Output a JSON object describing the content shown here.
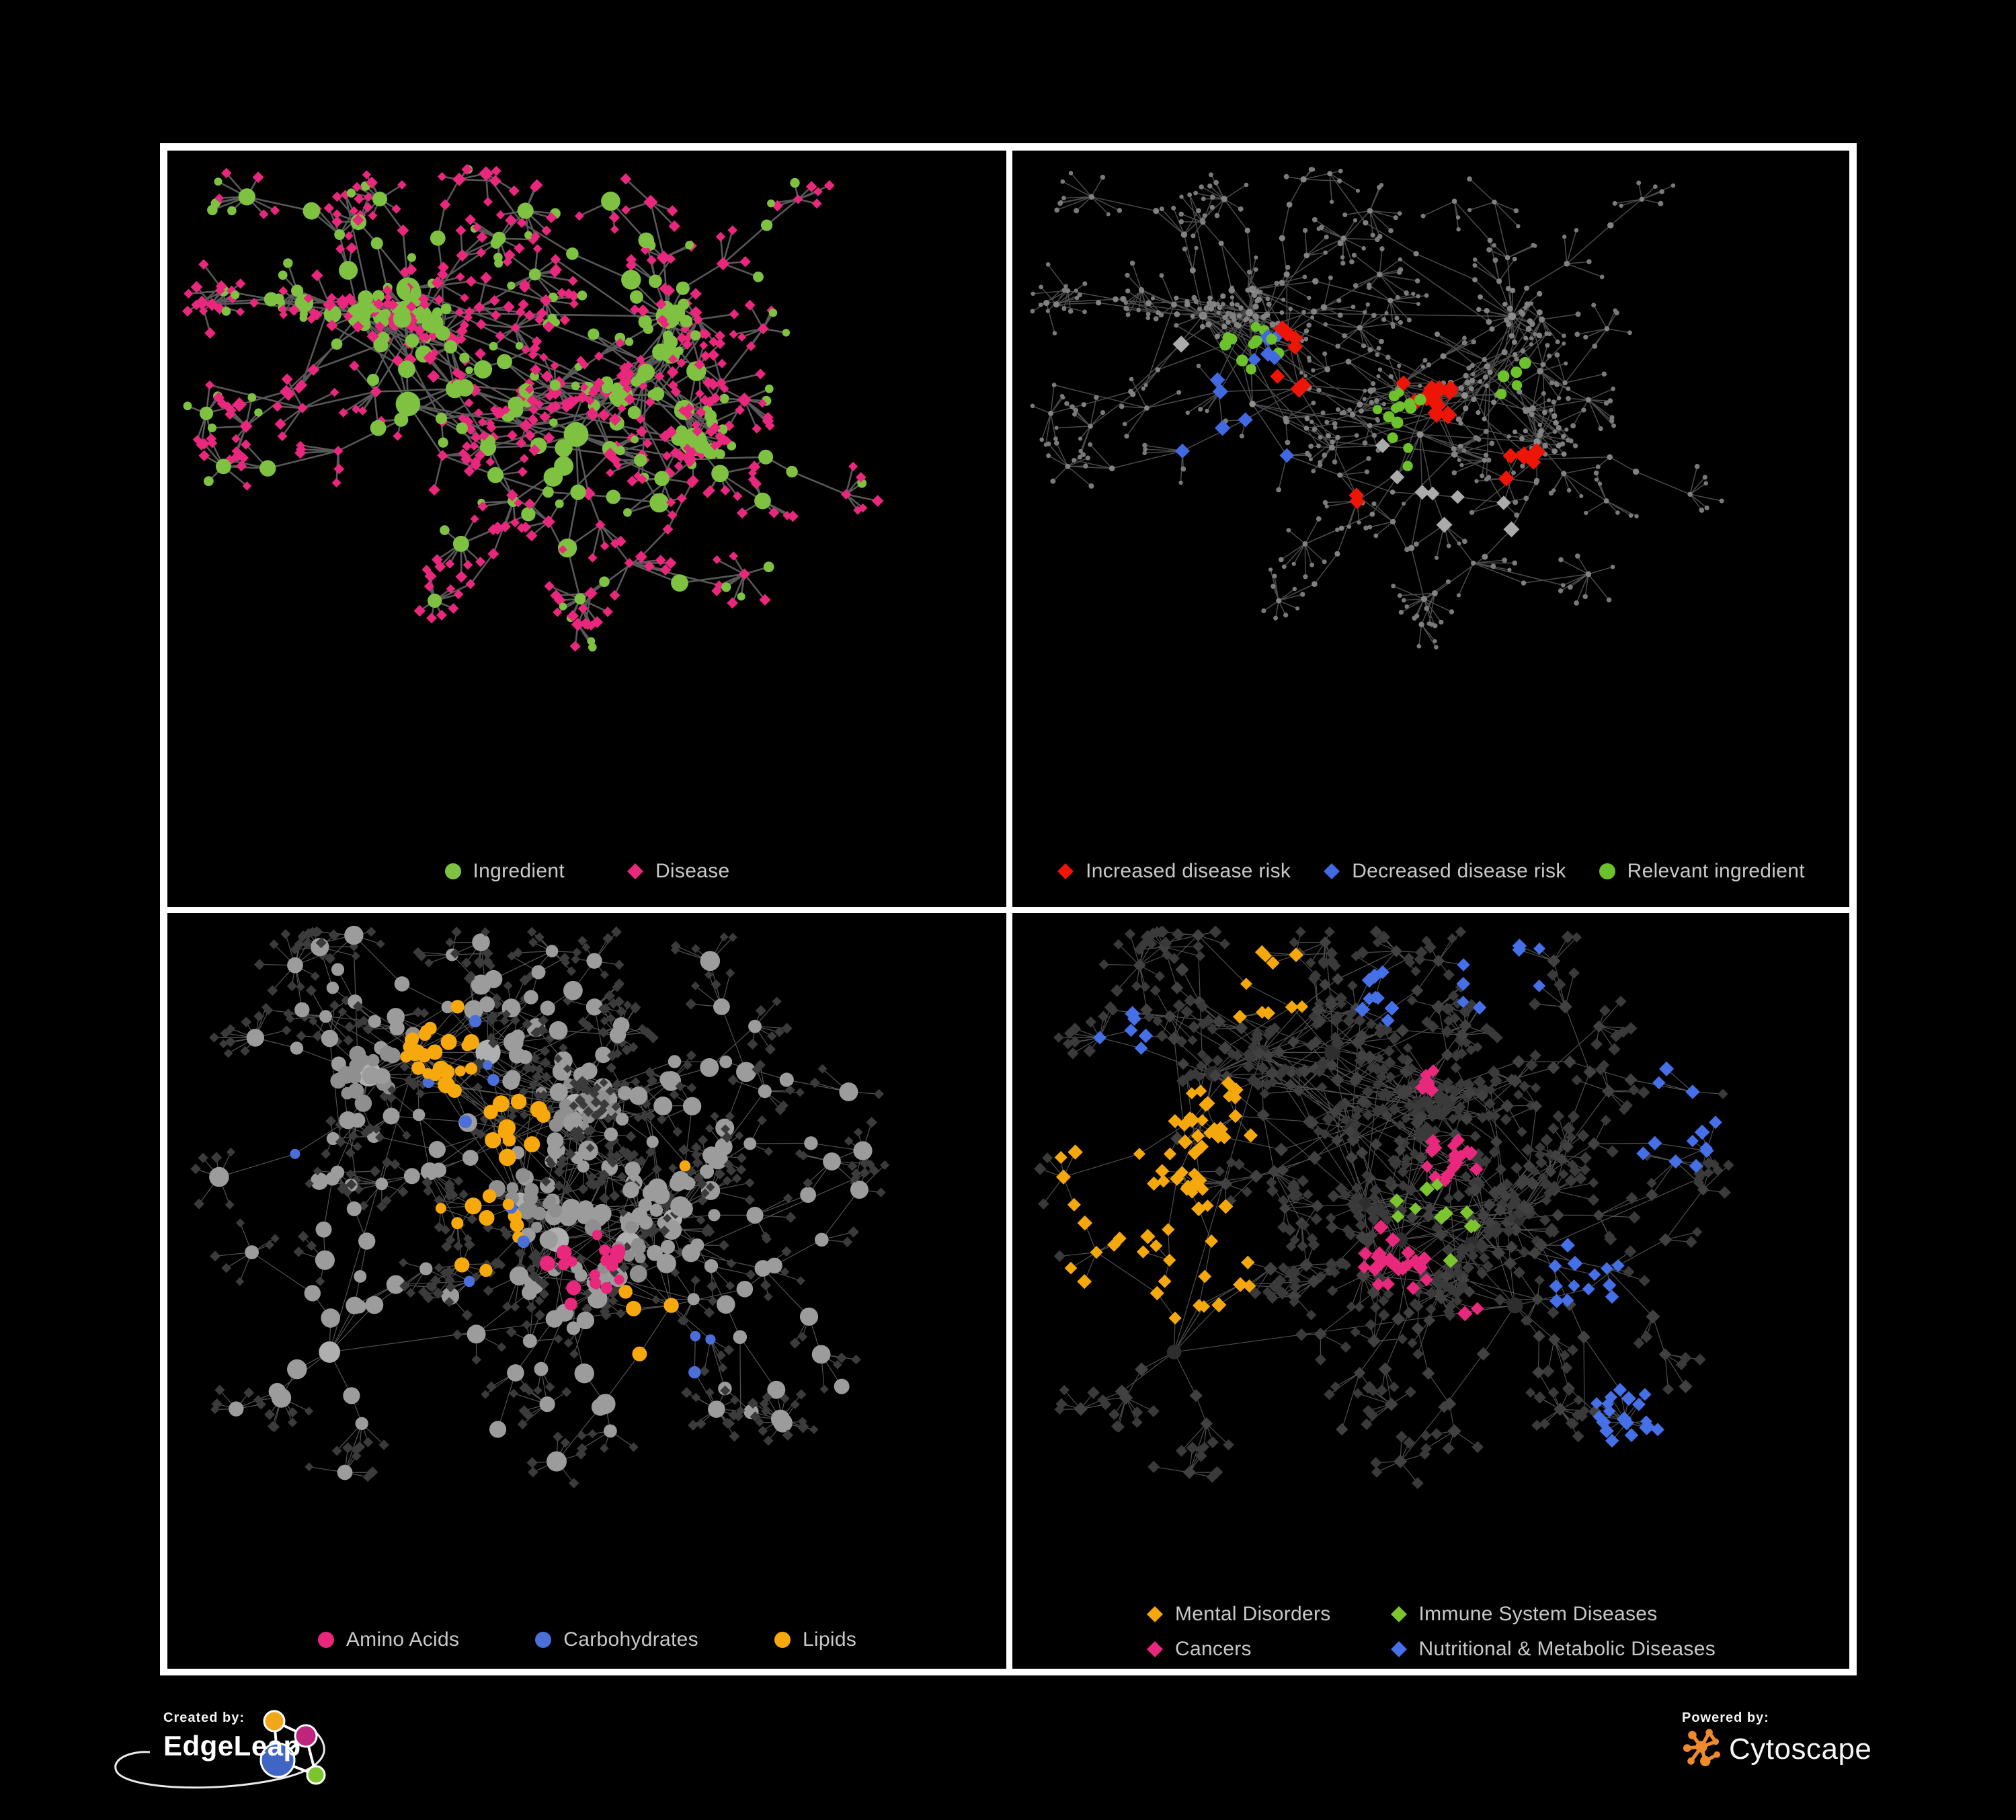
{
  "colors": {
    "background": "#000000",
    "frame_border": "#FFFFFF",
    "legend_text": "#C8C8C8"
  },
  "footer": {
    "created_by_label": "Created by:",
    "created_by_brand": "EdgeLeap",
    "powered_by_label": "Powered by:",
    "powered_by_brand": "Cytoscape",
    "edgeleap_logo_colors": {
      "orange": "#F2A71B",
      "magenta": "#C0257E",
      "blue": "#3F66C4",
      "green": "#7DC52F",
      "outline": "#FFFFFF"
    },
    "cytoscape_logo_color": "#EF8A2C"
  },
  "panels": [
    {
      "name": "ingredient-disease-network",
      "legend_rows": [
        [
          {
            "label": "Ingredient",
            "shape": "circle",
            "color": "#7FC241"
          },
          {
            "label": "Disease",
            "shape": "diamond",
            "color": "#E9287D"
          }
        ]
      ],
      "network": {
        "topology_seed": 1337,
        "style_seed": 11,
        "row": 0,
        "edge": {
          "color": "#6E6E6E",
          "width": 2.6,
          "opacity": 0.8
        },
        "base": {
          "leaf": [
            {
              "shape": "diamond",
              "color": "#E9287D",
              "rmin": 6.5,
              "rvar": 2.5,
              "p": 0.82
            },
            {
              "shape": "circle",
              "color": "#7FC241",
              "rmin": 5.5,
              "rvar": 2.5,
              "p": 0.18
            }
          ],
          "mid": [
            {
              "shape": "circle",
              "color": "#7FC241",
              "rmin": 8,
              "rvar": 7,
              "p": 0.48
            },
            {
              "shape": "diamond",
              "color": "#E9287D",
              "rmin": 7,
              "rvar": 4,
              "p": 0.52
            }
          ],
          "hub": [
            {
              "shape": "circle",
              "color": "#7FC241",
              "rmin": 13,
              "rvar": 9,
              "p": 1
            }
          ],
          "blob": [
            {
              "shape": "circle",
              "color": "#7FC241",
              "rmin": 7,
              "rvar": 5,
              "p": 0.4
            },
            {
              "shape": "diamond",
              "color": "#E9287D",
              "rmin": 6.5,
              "rvar": 3,
              "p": 0.6
            }
          ]
        },
        "highlights": []
      }
    },
    {
      "name": "disease-risk-network",
      "legend_rows": [
        [
          {
            "label": "Increased disease risk",
            "shape": "diamond",
            "color": "#EE1507"
          },
          {
            "label": "Decreased disease risk",
            "shape": "diamond",
            "color": "#4169E1"
          },
          {
            "label": "Relevant ingredient",
            "shape": "circle",
            "color": "#6DC12B"
          }
        ]
      ],
      "network": {
        "topology_seed": 1337,
        "style_seed": 22,
        "row": 0,
        "edge": {
          "color": "#5E5E5E",
          "width": 1.5,
          "opacity": 0.8
        },
        "base": {
          "leaf": [
            {
              "shape": "circle",
              "color": "#7A7A7A",
              "rmin": 3,
              "rvar": 1,
              "p": 1
            }
          ],
          "mid": [
            {
              "shape": "circle",
              "color": "#828282",
              "rmin": 3.6,
              "rvar": 1.2,
              "p": 1
            }
          ],
          "hub": [
            {
              "shape": "circle",
              "color": "#8E8E8E",
              "rmin": 4.6,
              "rvar": 1.6,
              "p": 1
            }
          ],
          "blob": [
            {
              "shape": "circle",
              "color": "#828282",
              "rmin": 3.4,
              "rvar": 1.2,
              "p": 1
            }
          ]
        },
        "highlights": [
          {
            "shape": "diamond",
            "color": "#EE1507",
            "count": 27,
            "rmin": 11,
            "rvar": 3,
            "roles": [
              "mid",
              "hub",
              "blob"
            ],
            "anchors": [
              [
                0.34,
                0.3,
                0.16
              ],
              [
                0.5,
                0.36,
                0.16
              ],
              [
                0.6,
                0.46,
                0.14
              ],
              [
                0.4,
                0.52,
                0.12
              ],
              [
                0.7,
                0.8,
                0.1
              ],
              [
                0.64,
                0.7,
                0.08
              ]
            ]
          },
          {
            "shape": "diamond",
            "color": "#4169E1",
            "count": 12,
            "rmin": 10,
            "rvar": 3,
            "roles": [
              "mid",
              "blob"
            ],
            "anchors": [
              [
                0.25,
                0.38,
                0.1
              ],
              [
                0.28,
                0.48,
                0.08
              ],
              [
                0.33,
                0.3,
                0.06
              ],
              [
                0.93,
                0.33,
                0.07
              ]
            ]
          },
          {
            "shape": "diamond",
            "color": "#ABABAB",
            "count": 9,
            "rmin": 10,
            "rvar": 3,
            "roles": [
              "mid",
              "blob"
            ],
            "anchors": [
              [
                0.22,
                0.3,
                0.07
              ],
              [
                0.52,
                0.52,
                0.1
              ],
              [
                0.6,
                0.55,
                0.08
              ],
              [
                0.44,
                0.46,
                0.06
              ]
            ]
          },
          {
            "shape": "circle",
            "color": "#6DC12B",
            "count": 30,
            "rmin": 6.5,
            "rvar": 2.5,
            "roles": [
              "mid",
              "blob",
              "leaf"
            ],
            "anchors": [
              [
                0.28,
                0.3,
                0.2
              ],
              [
                0.48,
                0.4,
                0.22
              ],
              [
                0.6,
                0.33,
                0.12
              ],
              [
                0.24,
                0.6,
                0.1
              ],
              [
                0.7,
                0.9,
                0.05
              ]
            ]
          }
        ]
      }
    },
    {
      "name": "nutrient-class-network",
      "legend_rows": [
        [
          {
            "label": "Amino Acids",
            "shape": "circle",
            "color": "#E9287D"
          },
          {
            "label": "Carbohydrates",
            "shape": "circle",
            "color": "#4A6FD9"
          },
          {
            "label": "Lipids",
            "shape": "circle",
            "color": "#F7A80D"
          }
        ]
      ],
      "network": {
        "topology_seed": 4242,
        "style_seed": 33,
        "row": 1,
        "edge": {
          "color": "#8A8A8A",
          "width": 1.2,
          "opacity": 0.6
        },
        "base": {
          "leaf": [
            {
              "shape": "diamond",
              "color": "#3B3B3B",
              "rmin": 6.5,
              "rvar": 1.8,
              "p": 1
            }
          ],
          "mid": [
            {
              "shape": "circle",
              "color": "#9C9C9C",
              "rmin": 9,
              "rvar": 6,
              "p": 1
            }
          ],
          "hub": [
            {
              "shape": "circle",
              "color": "#AFAFAF",
              "rmin": 14,
              "rvar": 6,
              "p": 1
            }
          ],
          "blob": [
            {
              "shape": "circle",
              "color": "#8F8F8F",
              "rmin": 8,
              "rvar": 5,
              "p": 1
            }
          ]
        },
        "highlights": [
          {
            "shape": "circle",
            "color": "#F7A80D",
            "count": 52,
            "rmin": 8,
            "rvar": 5,
            "roles": [
              "mid",
              "blob",
              "hub"
            ],
            "anchors": [
              [
                0.33,
                0.2,
                0.14
              ],
              [
                0.37,
                0.46,
                0.16
              ],
              [
                0.42,
                0.3,
                0.12
              ],
              [
                0.56,
                0.6,
                0.16
              ],
              [
                0.3,
                0.7,
                0.1
              ],
              [
                0.6,
                0.36,
                0.08
              ]
            ]
          },
          {
            "shape": "circle",
            "color": "#E9287D",
            "count": 17,
            "rmin": 7.5,
            "rvar": 4,
            "roles": [
              "mid",
              "blob",
              "leaf"
            ],
            "anchors": [
              [
                0.5,
                0.5,
                0.75
              ]
            ]
          },
          {
            "shape": "circle",
            "color": "#4A6FD9",
            "count": 12,
            "rmin": 6.5,
            "rvar": 3,
            "roles": [
              "mid",
              "blob"
            ],
            "anchors": [
              [
                0.34,
                0.22,
                0.1
              ],
              [
                0.38,
                0.48,
                0.08
              ],
              [
                0.13,
                0.33,
                0.06
              ],
              [
                0.62,
                0.62,
                0.07
              ]
            ]
          }
        ]
      }
    },
    {
      "name": "disease-class-network",
      "legend_rows": [
        [
          {
            "label": "Mental Disorders",
            "shape": "diamond",
            "color": "#F5A80C"
          },
          {
            "label": "Immune System Diseases",
            "shape": "diamond",
            "color": "#7DC52F"
          }
        ],
        [
          {
            "label": "Cancers",
            "shape": "diamond",
            "color": "#E9287D"
          },
          {
            "label": "Nutritional & Metabolic Diseases",
            "shape": "diamond",
            "color": "#4570E8"
          }
        ]
      ],
      "network": {
        "topology_seed": 4242,
        "style_seed": 44,
        "row": 1,
        "edge": {
          "color": "#8F8F8F",
          "width": 1.2,
          "opacity": 0.55
        },
        "base": {
          "leaf": [
            {
              "shape": "diamond",
              "color": "#3A3A3A",
              "rmin": 7.5,
              "rvar": 2,
              "p": 1
            }
          ],
          "mid": [
            {
              "shape": "diamond",
              "color": "#414141",
              "rmin": 8.5,
              "rvar": 2,
              "p": 1
            }
          ],
          "hub": [
            {
              "shape": "circle",
              "color": "#2E2E2E",
              "rmin": 10,
              "rvar": 3,
              "p": 1
            }
          ],
          "blob": [
            {
              "shape": "diamond",
              "color": "#3A3A3A",
              "rmin": 7.5,
              "rvar": 2,
              "p": 1
            }
          ]
        },
        "highlights": [
          {
            "shape": "diamond",
            "color": "#F5A80C",
            "count": 80,
            "rmin": 9,
            "rvar": 2.5,
            "roles": [
              "leaf",
              "mid",
              "blob"
            ],
            "anchors": [
              [
                0.15,
                0.44,
                0.15
              ],
              [
                0.21,
                0.52,
                0.12
              ],
              [
                0.11,
                0.36,
                0.09
              ],
              [
                0.3,
                0.1,
                0.08
              ],
              [
                0.24,
                0.3,
                0.07
              ]
            ]
          },
          {
            "shape": "diamond",
            "color": "#E9287D",
            "count": 52,
            "rmin": 9,
            "rvar": 2.5,
            "roles": [
              "leaf",
              "mid",
              "blob"
            ],
            "anchors": [
              [
                0.46,
                0.5,
                0.15
              ],
              [
                0.52,
                0.36,
                0.12
              ],
              [
                0.56,
                0.6,
                0.12
              ],
              [
                0.88,
                0.28,
                0.07
              ],
              [
                0.36,
                0.78,
                0.08
              ],
              [
                0.5,
                0.24,
                0.06
              ]
            ]
          },
          {
            "shape": "diamond",
            "color": "#4570E8",
            "count": 68,
            "rmin": 9,
            "rvar": 2.5,
            "roles": [
              "leaf",
              "mid",
              "blob"
            ],
            "anchors": [
              [
                0.68,
                0.52,
                0.12
              ],
              [
                0.58,
                0.08,
                0.14
              ],
              [
                0.8,
                0.3,
                0.14
              ],
              [
                0.74,
                0.72,
                0.12
              ],
              [
                0.3,
                0.64,
                0.08
              ],
              [
                0.13,
                0.18,
                0.08
              ],
              [
                0.9,
                0.14,
                0.08
              ],
              [
                0.44,
                0.12,
                0.07
              ]
            ]
          },
          {
            "shape": "diamond",
            "color": "#7DC52F",
            "count": 11,
            "rmin": 9,
            "rvar": 2.5,
            "roles": [
              "leaf",
              "mid",
              "blob"
            ],
            "anchors": [
              [
                0.5,
                0.45,
                0.7
              ]
            ]
          }
        ]
      }
    }
  ]
}
